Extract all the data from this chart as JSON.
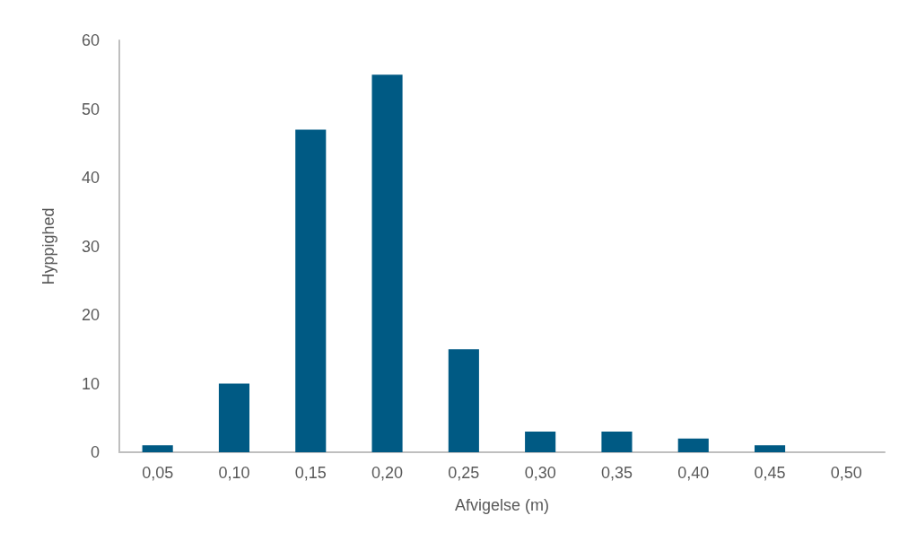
{
  "chart_data": {
    "type": "bar",
    "xlabel": "Afvigelse (m)",
    "ylabel": "Hyppighed",
    "categories": [
      "0,05",
      "0,10",
      "0,15",
      "0,20",
      "0,25",
      "0,30",
      "0,35",
      "0,40",
      "0,45",
      "0,50"
    ],
    "values": [
      1,
      10,
      47,
      55,
      15,
      3,
      3,
      2,
      1,
      0
    ],
    "color": "#005a84",
    "ylim": [
      0,
      60
    ],
    "yticks": [
      0,
      10,
      20,
      30,
      40,
      50,
      60
    ],
    "grid": false
  }
}
